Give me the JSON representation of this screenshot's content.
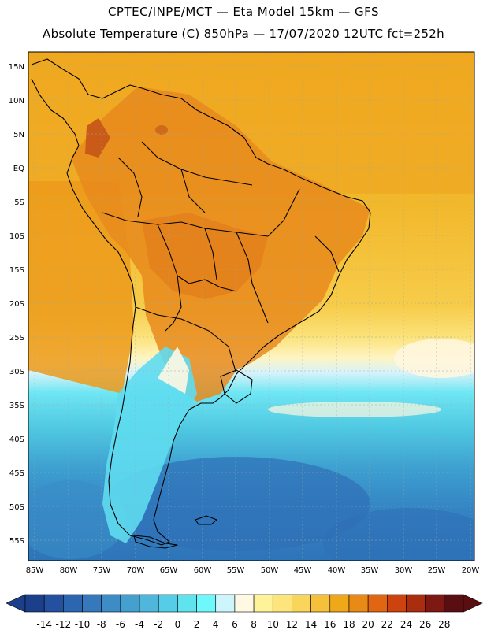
{
  "title_line1": "CPTEC/INPE/MCT —  Eta Model 15km — GFS",
  "title_line2": "Absolute Temperature (C) 850hPa — 17/07/2020 12UTC fct=252h",
  "lat_labels": [
    "15N",
    "10N",
    "5N",
    "EQ",
    "5S",
    "10S",
    "15S",
    "20S",
    "25S",
    "30S",
    "35S",
    "40S",
    "45S",
    "50S",
    "55S"
  ],
  "lon_labels": [
    "85W",
    "80W",
    "75W",
    "70W",
    "65W",
    "60W",
    "55W",
    "50W",
    "45W",
    "40W",
    "35W",
    "30W",
    "25W",
    "20W"
  ],
  "colorbar": {
    "ticks": [
      "-14",
      "-12",
      "-10",
      "-8",
      "-6",
      "-4",
      "-2",
      "0",
      "2",
      "4",
      "6",
      "8",
      "10",
      "12",
      "14",
      "16",
      "18",
      "20",
      "22",
      "24",
      "26",
      "28"
    ],
    "colors": [
      "#1c3f8c",
      "#23519f",
      "#2c66b0",
      "#3579bc",
      "#3d8cc6",
      "#45a0d0",
      "#4fb6dc",
      "#55cde6",
      "#5fe3ee",
      "#6ff8fb",
      "#cef5fb",
      "#fff8e3",
      "#fff39a",
      "#fde57b",
      "#fad55b",
      "#f5c13a",
      "#efa918",
      "#e98a17",
      "#e06612",
      "#cc4310",
      "#aa2d10",
      "#7d1812",
      "#5a0e12"
    ]
  }
}
